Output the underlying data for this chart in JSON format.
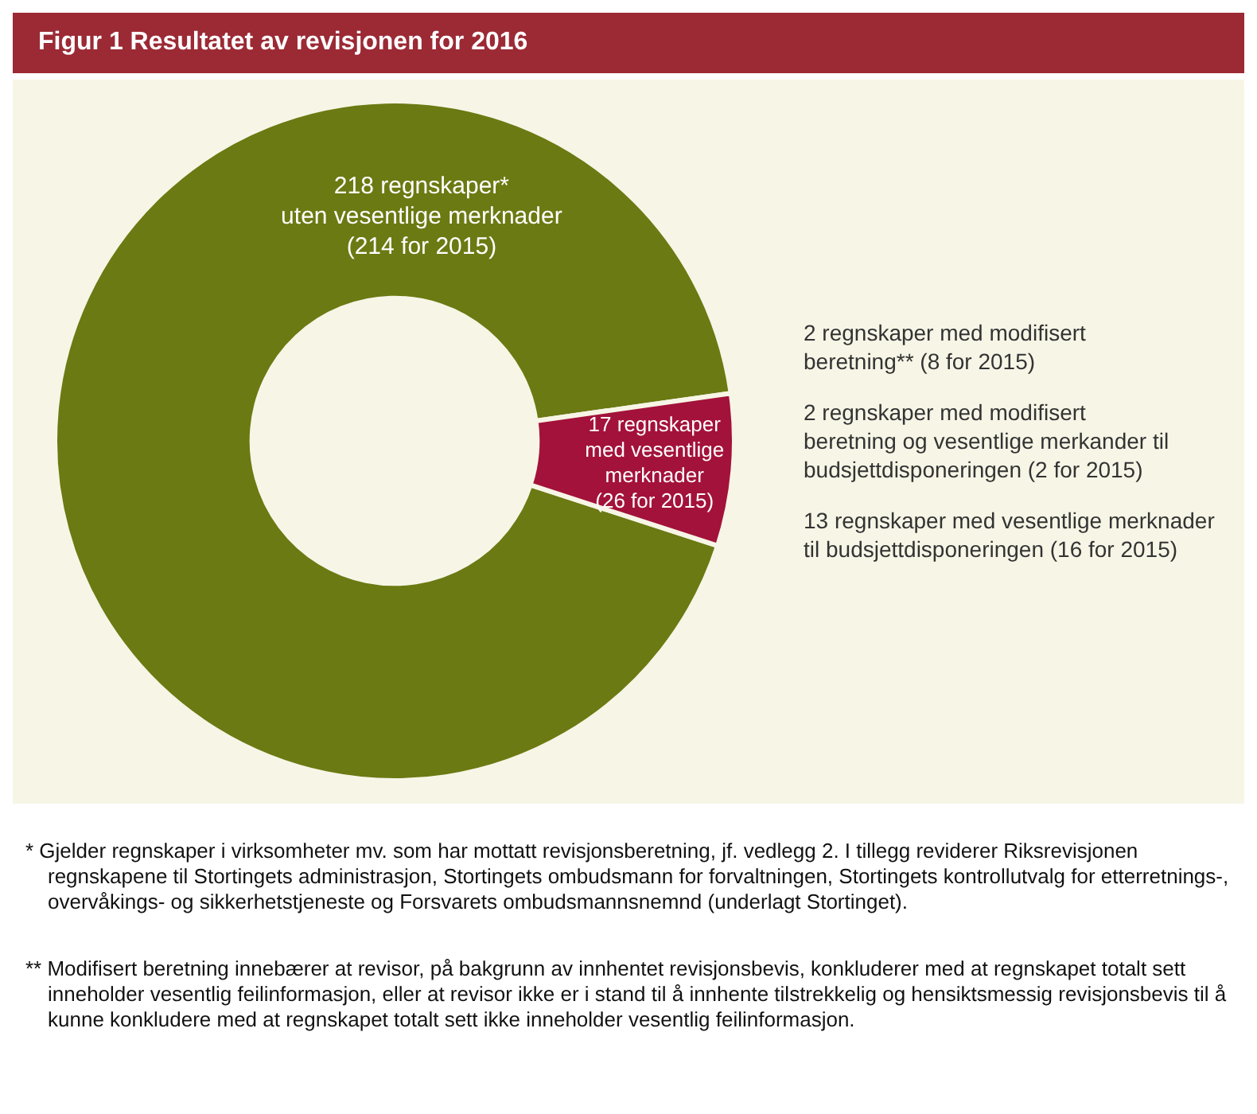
{
  "chart_data": {
    "type": "donut",
    "title": "Figur 1 Resultatet av revisjonen for 2016",
    "categories": [
      "218 regnskaper*\nuten vesentlige merknader\n(214 for 2015)",
      "17 regnskaper\nmed vesentlige\nmerknader\n(26 for 2015)"
    ],
    "values": [
      218,
      17
    ],
    "colors": [
      "#6b7a12",
      "#a3123a"
    ],
    "legend": false,
    "annotations": [
      "2 regnskaper med modifisert\nberetning** (8 for 2015)",
      "2 regnskaper med modifisert\nberetning og vesentlige merkander til\nbudsjettdisponeringen (2 for 2015)",
      "13 regnskaper med vesentlige merknader\ntil budsjettdisponeringen (16 for 2015)",
      "*  Gjelder regnskaper i virksomheter mv. som har mottatt revisjonsberetning, jf. vedlegg 2. I tillegg reviderer Riksrevisjonen regnskapene til Stortingets administrasjon, Stortingets ombudsmann for forvaltningen, Stortingets kontrollutvalg for etterretnings-, overvåkings- og sikkerhetstjeneste og Forsvarets ombudsmannsnemnd (underlagt Stortinget).",
      "** Modifisert beretning innebærer at revisor, på bakgrunn av innhentet revisjonsbevis, konkluderer med at regnskapet totalt sett inneholder vesentlig feilinformasjon, eller at revisor ikke er i stand til å innhente tilstrekkelig og hensiktsmessig revisjonsbevis til å kunne konkludere med at regnskapet totalt sett ikke inneholder vesentlig feilinformasjon."
    ]
  }
}
